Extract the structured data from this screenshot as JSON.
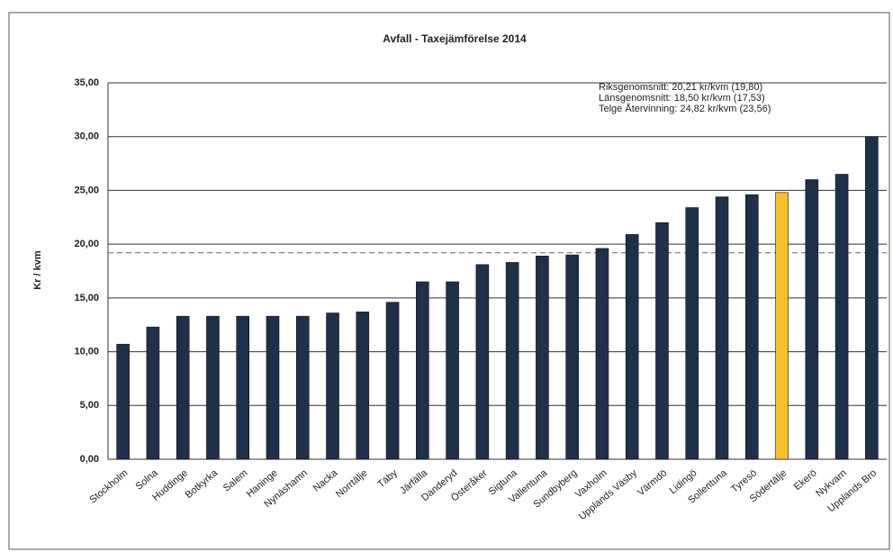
{
  "chart_data": {
    "type": "bar",
    "title": "Avfall - Taxejämförelse 2014",
    "y_label": "Kr / kvm",
    "annotations": [
      "Riksgenomsnitt:  20,21 kr/kvm (19,80)",
      "Länsgenomsnitt:  18,50 kr/kvm (17,53)",
      "Telge Återvinning:  24,82 kr/kvm (23,56)"
    ],
    "categories": [
      "Stockholm",
      "Solna",
      "Huddinge",
      "Botkyrka",
      "Salem",
      "Haninge",
      "Nynäshamn",
      "Nacka",
      "Norrtälje",
      "Täby",
      "Järfälla",
      "Danderyd",
      "Österåker",
      "Sigtuna",
      "Vallentuna",
      "Sundbyberg",
      "Vaxholm",
      "Upplands Väsby",
      "Värmdö",
      "Lidingö",
      "Sollentuna",
      "Tyresö",
      "Södertälje",
      "Ekerö",
      "Nykvarn",
      "Upplands Bro"
    ],
    "values": [
      10.7,
      12.3,
      13.3,
      13.3,
      13.3,
      13.3,
      13.3,
      13.6,
      13.7,
      14.6,
      16.5,
      16.5,
      18.1,
      18.3,
      18.9,
      19.0,
      19.6,
      20.9,
      22.0,
      23.4,
      24.4,
      24.6,
      24.8,
      26.0,
      26.5,
      30.0
    ],
    "colors": [
      "#1f3049",
      "#1f3049",
      "#1f3049",
      "#1f3049",
      "#1f3049",
      "#1f3049",
      "#1f3049",
      "#1f3049",
      "#1f3049",
      "#1f3049",
      "#1f3049",
      "#1f3049",
      "#1f3049",
      "#1f3049",
      "#1f3049",
      "#1f3049",
      "#1f3049",
      "#1f3049",
      "#1f3049",
      "#1f3049",
      "#1f3049",
      "#1f3049",
      "#f5c02a",
      "#1f3049",
      "#1f3049",
      "#1f3049"
    ],
    "reference_line": 19.2,
    "ylim": [
      0,
      35
    ],
    "yticks": [
      {
        "value": 0,
        "label": "0,00"
      },
      {
        "value": 5,
        "label": "5,00"
      },
      {
        "value": 10,
        "label": "10,00"
      },
      {
        "value": 15,
        "label": "15,00"
      },
      {
        "value": 20,
        "label": "20,00"
      },
      {
        "value": 25,
        "label": "25,00"
      },
      {
        "value": 30,
        "label": "30,00"
      },
      {
        "value": 35,
        "label": "35,00"
      }
    ],
    "grid": true
  }
}
